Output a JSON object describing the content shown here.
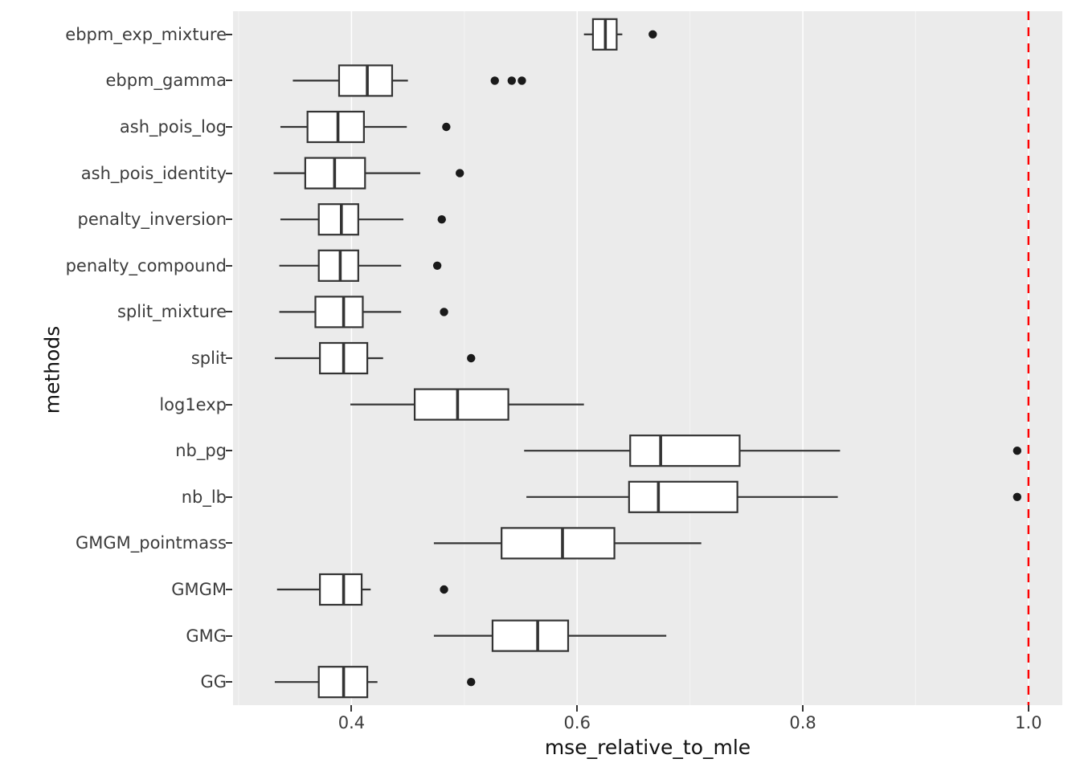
{
  "chart_data": {
    "type": "boxplot",
    "orientation": "horizontal",
    "title": "",
    "xlabel": "mse_relative_to_mle",
    "ylabel": "methods",
    "x_domain": [
      0.295,
      1.03
    ],
    "x_ticks": [
      0.4,
      0.6,
      0.8,
      1.0
    ],
    "x_tick_labels": [
      "0.4",
      "0.6",
      "0.8",
      "1.0"
    ],
    "x_minor_ticks": [
      0.3,
      0.5,
      0.7,
      0.9
    ],
    "panel_background": "#EBEBEB",
    "box_fill": "#FFFFFF",
    "box_stroke": "#333333",
    "outlier_color": "#1a1a1a",
    "reference_line": {
      "x": 1.0,
      "color": "#FF0000",
      "style": "dashed"
    },
    "series": [
      {
        "label": "ebpm_exp_mixture",
        "whisker_low": 0.606,
        "q1": 0.614,
        "median": 0.625,
        "q3": 0.635,
        "whisker_high": 0.64,
        "outliers": [
          0.667
        ]
      },
      {
        "label": "ebpm_gamma",
        "whisker_low": 0.348,
        "q1": 0.389,
        "median": 0.414,
        "q3": 0.436,
        "whisker_high": 0.45,
        "outliers": [
          0.527,
          0.542,
          0.551
        ]
      },
      {
        "label": "ash_pois_log",
        "whisker_low": 0.337,
        "q1": 0.361,
        "median": 0.388,
        "q3": 0.411,
        "whisker_high": 0.449,
        "outliers": [
          0.484
        ]
      },
      {
        "label": "ash_pois_identity",
        "whisker_low": 0.331,
        "q1": 0.359,
        "median": 0.385,
        "q3": 0.412,
        "whisker_high": 0.461,
        "outliers": [
          0.496
        ]
      },
      {
        "label": "penalty_inversion",
        "whisker_low": 0.337,
        "q1": 0.371,
        "median": 0.391,
        "q3": 0.406,
        "whisker_high": 0.446,
        "outliers": [
          0.48
        ]
      },
      {
        "label": "penalty_compound",
        "whisker_low": 0.336,
        "q1": 0.371,
        "median": 0.39,
        "q3": 0.406,
        "whisker_high": 0.444,
        "outliers": [
          0.476
        ]
      },
      {
        "label": "split_mixture",
        "whisker_low": 0.336,
        "q1": 0.368,
        "median": 0.393,
        "q3": 0.41,
        "whisker_high": 0.444,
        "outliers": [
          0.482
        ]
      },
      {
        "label": "split",
        "whisker_low": 0.332,
        "q1": 0.372,
        "median": 0.393,
        "q3": 0.414,
        "whisker_high": 0.428,
        "outliers": [
          0.506
        ]
      },
      {
        "label": "log1exp",
        "whisker_low": 0.399,
        "q1": 0.456,
        "median": 0.494,
        "q3": 0.539,
        "whisker_high": 0.606,
        "outliers": []
      },
      {
        "label": "nb_pg",
        "whisker_low": 0.553,
        "q1": 0.647,
        "median": 0.674,
        "q3": 0.744,
        "whisker_high": 0.833,
        "outliers": [
          0.99
        ]
      },
      {
        "label": "nb_lb",
        "whisker_low": 0.555,
        "q1": 0.646,
        "median": 0.672,
        "q3": 0.742,
        "whisker_high": 0.831,
        "outliers": [
          0.99
        ]
      },
      {
        "label": "GMGM_pointmass",
        "whisker_low": 0.473,
        "q1": 0.533,
        "median": 0.587,
        "q3": 0.633,
        "whisker_high": 0.71,
        "outliers": []
      },
      {
        "label": "GMGM",
        "whisker_low": 0.334,
        "q1": 0.372,
        "median": 0.393,
        "q3": 0.409,
        "whisker_high": 0.417,
        "outliers": [
          0.482
        ]
      },
      {
        "label": "GMG",
        "whisker_low": 0.473,
        "q1": 0.525,
        "median": 0.565,
        "q3": 0.592,
        "whisker_high": 0.679,
        "outliers": []
      },
      {
        "label": "GG",
        "whisker_low": 0.332,
        "q1": 0.371,
        "median": 0.393,
        "q3": 0.414,
        "whisker_high": 0.423,
        "outliers": [
          0.506
        ]
      }
    ]
  }
}
